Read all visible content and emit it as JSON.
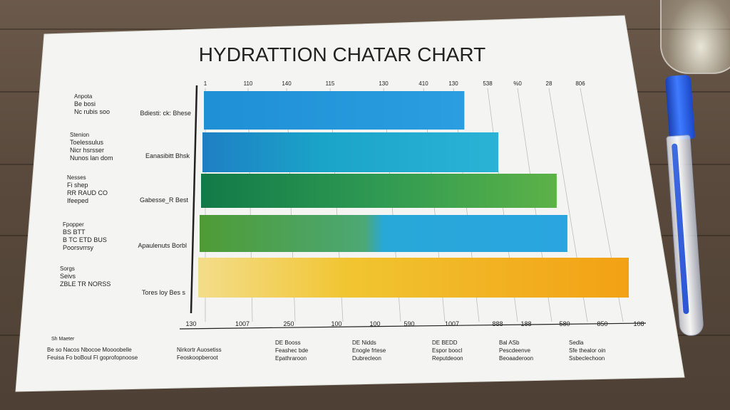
{
  "chart_data": {
    "type": "bar",
    "orientation": "horizontal",
    "title": "HYDRATTION CHATAR CHART",
    "top_ticks": [
      "1",
      "110",
      "140",
      "115",
      "130",
      "410",
      "130",
      "538",
      "%0",
      "28",
      "806"
    ],
    "bottom_ticks": [
      "130",
      "1007",
      "250",
      "100",
      "100",
      "590",
      "1007",
      "888",
      "188",
      "580",
      "850",
      "108"
    ],
    "row_labels_left": [
      [
        "Anpota",
        "Be bosi",
        "Nc rubis soo"
      ],
      [
        "Stenion",
        "Toelessulus",
        "Nicr hsrsser",
        "Nunos lan dom"
      ],
      [
        "Nesses",
        "Fi shep",
        "RR RAUD CO",
        "Ifeeped"
      ],
      [
        "Fpopper",
        "BS BTT",
        "B TC ETD BUS",
        "Poorsvrrsy"
      ],
      [
        "Sorgs",
        "Seivs",
        "ZBLE TR NORSS"
      ]
    ],
    "row_labels_inner": [
      "Bdiesti: ck: Bhese",
      "Eanasibitt Bhsk",
      "Gabesse_R Best",
      "Apaulenuts Borbl",
      "Tores  loy Bes s"
    ],
    "values": [
      530,
      600,
      720,
      830,
      880
    ],
    "xlim": [
      0,
      880
    ],
    "bottom_annotation": "Sh Maeter",
    "bottom_labels": [
      [
        "Be so Nacos Nbocoe Moooobelle",
        "Feuisa Fo boBoul Fl goprofopnoose"
      ],
      [
        "Nirkortr Auosetiss",
        "Feoskoopberoot"
      ],
      [
        "DE Booss",
        "Feashec bde",
        "Epathraroon"
      ],
      [
        "DE Nidds",
        "Enogle frtese",
        "Dubrecleon"
      ],
      [
        "DE BEDD",
        "Espor boocl",
        "Reputdeoon"
      ],
      [
        "Bal ASb",
        "Pescdeenve",
        "Beoaaderoon"
      ],
      [
        "Sedla",
        "Sfe thealor oin",
        "Ssbeclechoon"
      ]
    ]
  }
}
